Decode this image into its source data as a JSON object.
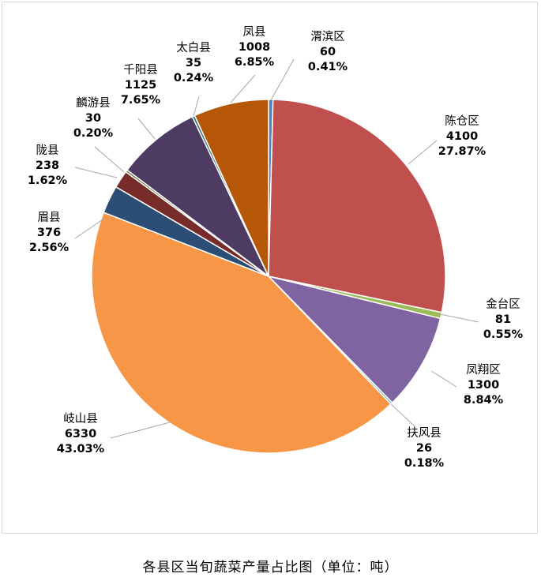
{
  "chart_data": {
    "type": "pie",
    "title": "各县区当旬蔬菜产量占比图（单位：吨）",
    "slices": [
      {
        "name": "渭滨区",
        "value": 60,
        "percent": "0.41%",
        "color": "#4F81BD"
      },
      {
        "name": "陈仓区",
        "value": 4100,
        "percent": "27.87%",
        "color": "#C0504D"
      },
      {
        "name": "金台区",
        "value": 81,
        "percent": "0.55%",
        "color": "#9BBB59"
      },
      {
        "name": "凤翔区",
        "value": 1300,
        "percent": "8.84%",
        "color": "#8064A2"
      },
      {
        "name": "扶风县",
        "value": 26,
        "percent": "0.18%",
        "color": "#4BACC6"
      },
      {
        "name": "岐山县",
        "value": 6330,
        "percent": "43.03%",
        "color": "#F79646"
      },
      {
        "name": "眉县",
        "value": 376,
        "percent": "2.56%",
        "color": "#2C4D75"
      },
      {
        "name": "陇县",
        "value": 238,
        "percent": "1.62%",
        "color": "#772C2A"
      },
      {
        "name": "麟游县",
        "value": 30,
        "percent": "0.20%",
        "color": "#5F7530"
      },
      {
        "name": "千阳县",
        "value": 1125,
        "percent": "7.65%",
        "color": "#4D3B62"
      },
      {
        "name": "太白县",
        "value": 35,
        "percent": "0.24%",
        "color": "#276A7C"
      },
      {
        "name": "凤县",
        "value": 1008,
        "percent": "6.85%",
        "color": "#B65708"
      }
    ]
  }
}
